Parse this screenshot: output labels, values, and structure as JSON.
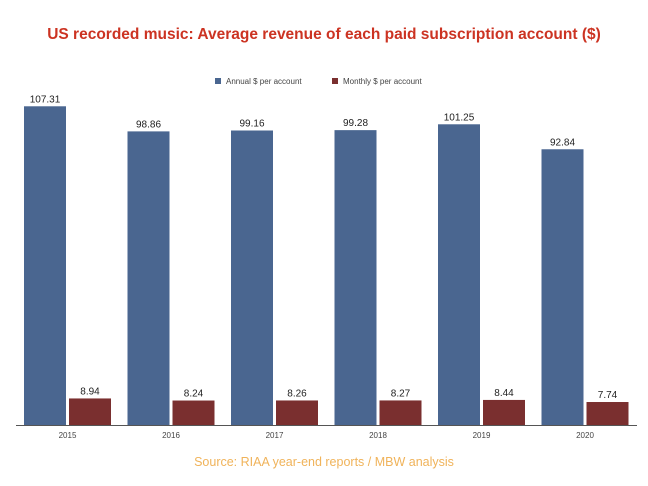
{
  "chart_data": {
    "type": "bar",
    "title": "US recorded music: Average revenue of each paid subscription account ($)",
    "categories": [
      "2015",
      "2016",
      "2017",
      "2018",
      "2019",
      "2020"
    ],
    "series": [
      {
        "name": "Annual $ per account",
        "color": "#4a6690",
        "values": [
          107.31,
          98.86,
          99.16,
          99.28,
          101.25,
          92.84
        ]
      },
      {
        "name": "Monthly $ per account",
        "color": "#7a2f2f",
        "values": [
          8.94,
          8.24,
          8.26,
          8.27,
          8.44,
          7.74
        ]
      }
    ],
    "xlabel": "",
    "ylabel": "",
    "ylim": [
      0,
      110
    ],
    "grid": false,
    "legend": "top-center",
    "data_labels": true,
    "source": "Source: RIAA year-end reports / MBW analysis"
  }
}
